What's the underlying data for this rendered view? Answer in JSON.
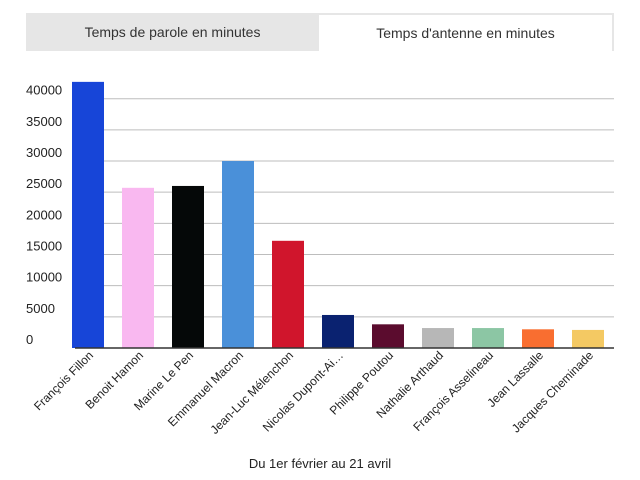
{
  "tabs": [
    {
      "label": "Temps de parole en minutes",
      "active": false
    },
    {
      "label": "Temps d'antenne en minutes",
      "active": true
    }
  ],
  "chart_data": {
    "type": "bar",
    "title": "",
    "xlabel": "Du 1er février au 21 avril",
    "ylabel": "",
    "ylim": [
      0,
      43000
    ],
    "yticks": [
      0,
      5000,
      10000,
      15000,
      20000,
      25000,
      30000,
      35000,
      40000
    ],
    "grid": true,
    "legend": "none",
    "categories": [
      "François Fillon",
      "Benoit Hamon",
      "Marine Le Pen",
      "Emmanuel Macron",
      "Jean-Luc Mélenchon",
      "Nicolas Dupont-Ai…",
      "Philippe Poutou",
      "Nathalie Arthaud",
      "François Asselineau",
      "Jean Lassalle",
      "Jacques Cheminade"
    ],
    "values": [
      42700,
      25700,
      26000,
      30000,
      17200,
      5300,
      3800,
      3200,
      3200,
      3000,
      2900
    ],
    "colors": [
      "#1745d8",
      "#f9b8f0",
      "#050808",
      "#4a90d9",
      "#d0152c",
      "#0a2270",
      "#5b0c2e",
      "#b7b7b7",
      "#8cc6a4",
      "#f96e30",
      "#f4c963"
    ]
  }
}
